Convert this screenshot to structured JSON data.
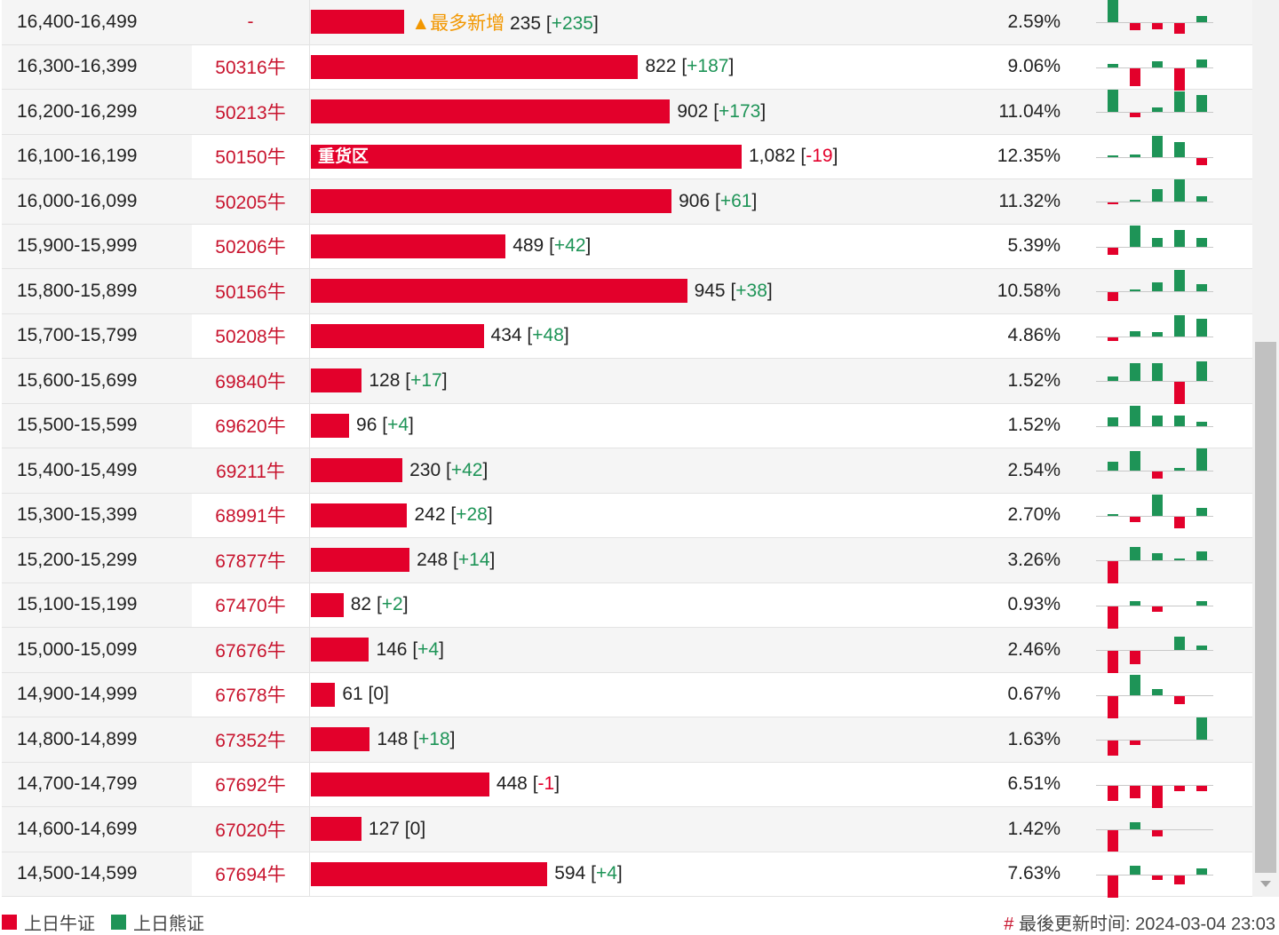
{
  "colors": {
    "bull": "#e3002b",
    "bear": "#1e9457",
    "new": "#f29700"
  },
  "max_count": 1082,
  "rows": [
    {
      "range": "16,400-16,499",
      "code": "-",
      "count": 235,
      "count_label": "235",
      "change": "+235",
      "pct": "2.59%",
      "tag": "▲最多新增",
      "mini": [
        25,
        -8,
        -7,
        -12,
        7
      ]
    },
    {
      "range": "16,300-16,399",
      "code": "50316牛",
      "count": 822,
      "count_label": "822",
      "change": "+187",
      "pct": "9.06%",
      "mini": [
        4,
        -20,
        7,
        -25,
        9
      ]
    },
    {
      "range": "16,200-16,299",
      "code": "50213牛",
      "count": 902,
      "count_label": "902",
      "change": "+173",
      "pct": "11.04%",
      "mini": [
        25,
        -5,
        5,
        23,
        19
      ]
    },
    {
      "range": "16,100-16,199",
      "code": "50150牛",
      "count": 1082,
      "count_label": "1,082",
      "change": "-19",
      "pct": "12.35%",
      "bar_text": "重货区",
      "mini": [
        1,
        3,
        24,
        17,
        -8
      ]
    },
    {
      "range": "16,000-16,099",
      "code": "50205牛",
      "count": 906,
      "count_label": "906",
      "change": "+61",
      "pct": "11.32%",
      "mini": [
        -2,
        2,
        14,
        25,
        6
      ]
    },
    {
      "range": "15,900-15,999",
      "code": "50206牛",
      "count": 489,
      "count_label": "489",
      "change": "+42",
      "pct": "5.39%",
      "mini": [
        -8,
        24,
        10,
        19,
        10
      ]
    },
    {
      "range": "15,800-15,899",
      "code": "50156牛",
      "count": 945,
      "count_label": "945",
      "change": "+38",
      "pct": "10.58%",
      "mini": [
        -10,
        2,
        10,
        24,
        8
      ]
    },
    {
      "range": "15,700-15,799",
      "code": "50208牛",
      "count": 434,
      "count_label": "434",
      "change": "+48",
      "pct": "4.86%",
      "mini": [
        -4,
        6,
        5,
        24,
        20
      ]
    },
    {
      "range": "15,600-15,699",
      "code": "69840牛",
      "count": 128,
      "count_label": "128",
      "change": "+17",
      "pct": "1.52%",
      "mini": [
        5,
        20,
        20,
        -25,
        22
      ]
    },
    {
      "range": "15,500-15,599",
      "code": "69620牛",
      "count": 96,
      "count_label": "96",
      "change": "+4",
      "pct": "1.52%",
      "mini": [
        10,
        23,
        12,
        12,
        5
      ]
    },
    {
      "range": "15,400-15,499",
      "code": "69211牛",
      "count": 230,
      "count_label": "230",
      "change": "+42",
      "pct": "2.54%",
      "mini": [
        10,
        22,
        -8,
        3,
        25
      ]
    },
    {
      "range": "15,300-15,399",
      "code": "68991牛",
      "count": 242,
      "count_label": "242",
      "change": "+28",
      "pct": "2.70%",
      "mini": [
        2,
        -6,
        24,
        -13,
        9
      ]
    },
    {
      "range": "15,200-15,299",
      "code": "67877牛",
      "count": 248,
      "count_label": "248",
      "change": "+14",
      "pct": "3.26%",
      "mini": [
        -25,
        15,
        8,
        2,
        10
      ]
    },
    {
      "range": "15,100-15,199",
      "code": "67470牛",
      "count": 82,
      "count_label": "82",
      "change": "+2",
      "pct": "0.93%",
      "mini": [
        -25,
        5,
        -6,
        0,
        5
      ]
    },
    {
      "range": "15,000-15,099",
      "code": "67676牛",
      "count": 146,
      "count_label": "146",
      "change": "+4",
      "pct": "2.46%",
      "mini": [
        -25,
        -15,
        0,
        15,
        5
      ]
    },
    {
      "range": "14,900-14,999",
      "code": "67678牛",
      "count": 61,
      "count_label": "61",
      "change": "0",
      "pct": "0.67%",
      "mini": [
        -25,
        23,
        7,
        -9,
        0
      ]
    },
    {
      "range": "14,800-14,899",
      "code": "67352牛",
      "count": 148,
      "count_label": "148",
      "change": "+18",
      "pct": "1.63%",
      "mini": [
        -17,
        -5,
        0,
        0,
        25
      ]
    },
    {
      "range": "14,700-14,799",
      "code": "67692牛",
      "count": 448,
      "count_label": "448",
      "change": "-1",
      "pct": "6.51%",
      "mini": [
        -17,
        -14,
        -25,
        -6,
        -6
      ]
    },
    {
      "range": "14,600-14,699",
      "code": "67020牛",
      "count": 127,
      "count_label": "127",
      "change": "0",
      "pct": "1.42%",
      "mini": [
        -24,
        8,
        -7,
        0,
        0
      ]
    },
    {
      "range": "14,500-14,599",
      "code": "67694牛",
      "count": 594,
      "count_label": "594",
      "change": "+4",
      "pct": "7.63%",
      "mini": [
        -25,
        10,
        -5,
        -10,
        7
      ]
    }
  ],
  "legend": {
    "bull": "上日牛证",
    "bear": "上日熊证"
  },
  "footer": {
    "hash": "#",
    "label": "最後更新时间:",
    "time": "2024-03-04 23:03"
  }
}
